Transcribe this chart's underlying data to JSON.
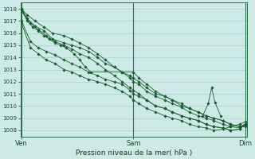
{
  "title": "Pression niveau de la mer( hPa )",
  "bg_color": "#ceeae7",
  "grid_color": "#a8d5d0",
  "line_color": "#1a5c30",
  "ylim": [
    1007.5,
    1018.5
  ],
  "yticks": [
    1008,
    1009,
    1010,
    1011,
    1012,
    1013,
    1014,
    1015,
    1016,
    1017,
    1018
  ],
  "xtick_labels": [
    "Ven",
    "Sam",
    "Dim"
  ],
  "xtick_positions": [
    0.0,
    1.0,
    2.0
  ],
  "xlim": [
    -0.01,
    2.02
  ],
  "series": [
    {
      "pts": [
        [
          0.0,
          1018.0
        ],
        [
          0.05,
          1017.2
        ],
        [
          0.12,
          1016.6
        ],
        [
          0.2,
          1016.2
        ],
        [
          0.28,
          1015.5
        ],
        [
          0.38,
          1015.2
        ],
        [
          0.45,
          1015.0
        ],
        [
          0.52,
          1014.8
        ],
        [
          0.6,
          1014.5
        ],
        [
          0.68,
          1014.0
        ],
        [
          0.75,
          1013.5
        ],
        [
          0.83,
          1013.2
        ],
        [
          0.9,
          1012.8
        ],
        [
          0.97,
          1012.5
        ],
        [
          1.0,
          1012.3
        ],
        [
          1.05,
          1012.0
        ],
        [
          1.12,
          1011.5
        ],
        [
          1.2,
          1011.0
        ],
        [
          1.28,
          1010.8
        ],
        [
          1.35,
          1010.5
        ],
        [
          1.43,
          1010.2
        ],
        [
          1.5,
          1009.8
        ],
        [
          1.58,
          1009.5
        ],
        [
          1.65,
          1009.2
        ],
        [
          1.72,
          1009.0
        ],
        [
          1.8,
          1008.8
        ],
        [
          1.87,
          1008.5
        ],
        [
          1.95,
          1008.3
        ],
        [
          2.0,
          1008.3
        ]
      ]
    },
    {
      "pts": [
        [
          0.0,
          1018.0
        ],
        [
          0.05,
          1017.5
        ],
        [
          0.12,
          1017.0
        ],
        [
          0.2,
          1016.5
        ],
        [
          0.28,
          1016.0
        ],
        [
          0.38,
          1015.8
        ],
        [
          0.45,
          1015.5
        ],
        [
          0.52,
          1015.2
        ],
        [
          0.6,
          1014.8
        ],
        [
          0.68,
          1014.3
        ],
        [
          0.75,
          1013.8
        ],
        [
          0.83,
          1013.2
        ],
        [
          0.9,
          1012.8
        ],
        [
          0.97,
          1012.3
        ],
        [
          1.0,
          1012.0
        ],
        [
          1.05,
          1011.8
        ],
        [
          1.12,
          1011.2
        ],
        [
          1.2,
          1010.8
        ],
        [
          1.28,
          1010.5
        ],
        [
          1.35,
          1010.2
        ],
        [
          1.43,
          1009.9
        ],
        [
          1.5,
          1009.5
        ],
        [
          1.58,
          1009.2
        ],
        [
          1.65,
          1009.0
        ],
        [
          1.72,
          1008.8
        ],
        [
          1.8,
          1008.5
        ],
        [
          1.87,
          1008.3
        ],
        [
          1.95,
          1008.2
        ],
        [
          2.0,
          1008.4
        ]
      ]
    },
    {
      "pts": [
        [
          0.0,
          1017.8
        ],
        [
          0.08,
          1016.8
        ],
        [
          0.15,
          1016.3
        ],
        [
          0.22,
          1015.8
        ],
        [
          0.3,
          1015.3
        ],
        [
          0.38,
          1015.0
        ],
        [
          0.45,
          1014.7
        ],
        [
          0.52,
          1014.3
        ],
        [
          0.6,
          1014.0
        ],
        [
          0.68,
          1013.5
        ],
        [
          0.75,
          1013.0
        ],
        [
          0.83,
          1012.5
        ],
        [
          0.9,
          1012.0
        ],
        [
          0.97,
          1011.5
        ],
        [
          1.0,
          1011.3
        ],
        [
          1.05,
          1011.0
        ],
        [
          1.12,
          1010.5
        ],
        [
          1.2,
          1010.0
        ],
        [
          1.28,
          1009.8
        ],
        [
          1.35,
          1009.5
        ],
        [
          1.43,
          1009.2
        ],
        [
          1.5,
          1009.0
        ],
        [
          1.58,
          1008.8
        ],
        [
          1.65,
          1008.5
        ],
        [
          1.72,
          1008.3
        ],
        [
          1.8,
          1008.2
        ],
        [
          1.87,
          1008.0
        ],
        [
          1.95,
          1008.1
        ],
        [
          2.0,
          1008.5
        ]
      ]
    },
    {
      "pts": [
        [
          0.0,
          1017.0
        ],
        [
          0.08,
          1015.3
        ],
        [
          0.15,
          1014.8
        ],
        [
          0.22,
          1014.5
        ],
        [
          0.3,
          1014.2
        ],
        [
          0.38,
          1013.8
        ],
        [
          0.45,
          1013.5
        ],
        [
          0.52,
          1013.2
        ],
        [
          0.6,
          1012.8
        ],
        [
          0.68,
          1012.5
        ],
        [
          0.75,
          1012.2
        ],
        [
          0.83,
          1012.0
        ],
        [
          0.9,
          1011.8
        ],
        [
          0.97,
          1011.3
        ],
        [
          1.0,
          1011.0
        ],
        [
          1.05,
          1010.8
        ],
        [
          1.12,
          1010.5
        ],
        [
          1.2,
          1010.0
        ],
        [
          1.28,
          1009.8
        ],
        [
          1.35,
          1009.5
        ],
        [
          1.43,
          1009.2
        ],
        [
          1.5,
          1009.0
        ],
        [
          1.58,
          1008.8
        ],
        [
          1.65,
          1008.5
        ],
        [
          1.72,
          1008.3
        ],
        [
          1.8,
          1008.2
        ],
        [
          1.87,
          1008.0
        ],
        [
          1.95,
          1008.1
        ],
        [
          2.0,
          1008.5
        ]
      ]
    },
    {
      "pts": [
        [
          0.0,
          1016.8
        ],
        [
          0.08,
          1014.8
        ],
        [
          0.15,
          1014.3
        ],
        [
          0.22,
          1013.8
        ],
        [
          0.3,
          1013.5
        ],
        [
          0.38,
          1013.0
        ],
        [
          0.45,
          1012.8
        ],
        [
          0.52,
          1012.5
        ],
        [
          0.6,
          1012.2
        ],
        [
          0.68,
          1012.0
        ],
        [
          0.75,
          1011.8
        ],
        [
          0.83,
          1011.5
        ],
        [
          0.9,
          1011.2
        ],
        [
          0.97,
          1010.8
        ],
        [
          1.0,
          1010.5
        ],
        [
          1.05,
          1010.2
        ],
        [
          1.12,
          1009.8
        ],
        [
          1.2,
          1009.5
        ],
        [
          1.28,
          1009.2
        ],
        [
          1.35,
          1009.0
        ],
        [
          1.43,
          1008.8
        ],
        [
          1.5,
          1008.5
        ],
        [
          1.58,
          1008.3
        ],
        [
          1.65,
          1008.2
        ],
        [
          1.72,
          1008.0
        ],
        [
          1.8,
          1008.1
        ],
        [
          1.87,
          1008.3
        ],
        [
          1.95,
          1008.5
        ],
        [
          2.0,
          1008.7
        ]
      ]
    },
    {
      "pts": [
        [
          0.0,
          1018.0
        ],
        [
          0.05,
          1017.0
        ],
        [
          0.1,
          1016.5
        ],
        [
          0.15,
          1016.2
        ],
        [
          0.2,
          1015.8
        ],
        [
          0.25,
          1015.5
        ],
        [
          0.3,
          1015.2
        ],
        [
          0.35,
          1015.0
        ],
        [
          0.4,
          1014.8
        ],
        [
          0.47,
          1014.3
        ],
        [
          0.52,
          1013.8
        ],
        [
          0.57,
          1013.2
        ],
        [
          0.62,
          1012.8
        ],
        [
          1.0,
          1012.8
        ],
        [
          1.05,
          1012.3
        ],
        [
          1.12,
          1011.8
        ],
        [
          1.2,
          1011.2
        ],
        [
          1.28,
          1010.8
        ],
        [
          1.35,
          1010.5
        ],
        [
          1.43,
          1010.0
        ],
        [
          1.5,
          1009.8
        ],
        [
          1.58,
          1009.5
        ],
        [
          1.65,
          1009.2
        ],
        [
          1.72,
          1009.0
        ],
        [
          1.8,
          1008.8
        ],
        [
          1.87,
          1008.5
        ],
        [
          1.95,
          1008.3
        ],
        [
          2.0,
          1008.5
        ]
      ]
    }
  ],
  "spike": {
    "pts": [
      [
        1.62,
        1009.2
      ],
      [
        1.67,
        1010.2
      ],
      [
        1.7,
        1011.5
      ],
      [
        1.73,
        1010.3
      ],
      [
        1.78,
        1009.2
      ]
    ]
  },
  "vlines": [
    0.0,
    1.0,
    2.0
  ],
  "vline_color": "#2d6e4e",
  "spine_color": "#2d6e4e"
}
